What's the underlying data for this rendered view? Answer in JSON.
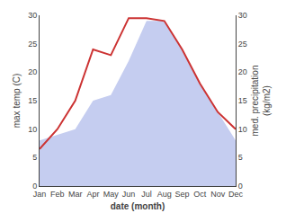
{
  "chart_data": {
    "type": "line",
    "categories": [
      "Jan",
      "Feb",
      "Mar",
      "Apr",
      "May",
      "Jun",
      "Jul",
      "Aug",
      "Sep",
      "Oct",
      "Nov",
      "Dec"
    ],
    "series": [
      {
        "type": "area",
        "color": "#c5cdf0",
        "axis": "y2",
        "values": [
          8,
          9,
          10,
          15,
          16,
          22,
          29,
          29,
          24,
          18,
          13,
          8
        ]
      },
      {
        "type": "line",
        "color": "#cc3333",
        "values": [
          6.5,
          10,
          15,
          24,
          23,
          29.5,
          29.5,
          29,
          24,
          18,
          13,
          10
        ]
      }
    ],
    "xlabel": "date (month)",
    "ylabel": "max temp (C)",
    "y2label": "med. precipitation\n(kg/m2)",
    "ylim": [
      0,
      30
    ],
    "yticks": [
      0,
      5,
      10,
      15,
      20,
      25,
      30
    ],
    "y2lim": [
      0,
      30
    ],
    "y2ticks": [
      0,
      5,
      10,
      15,
      20,
      25,
      30
    ],
    "grid": false
  }
}
